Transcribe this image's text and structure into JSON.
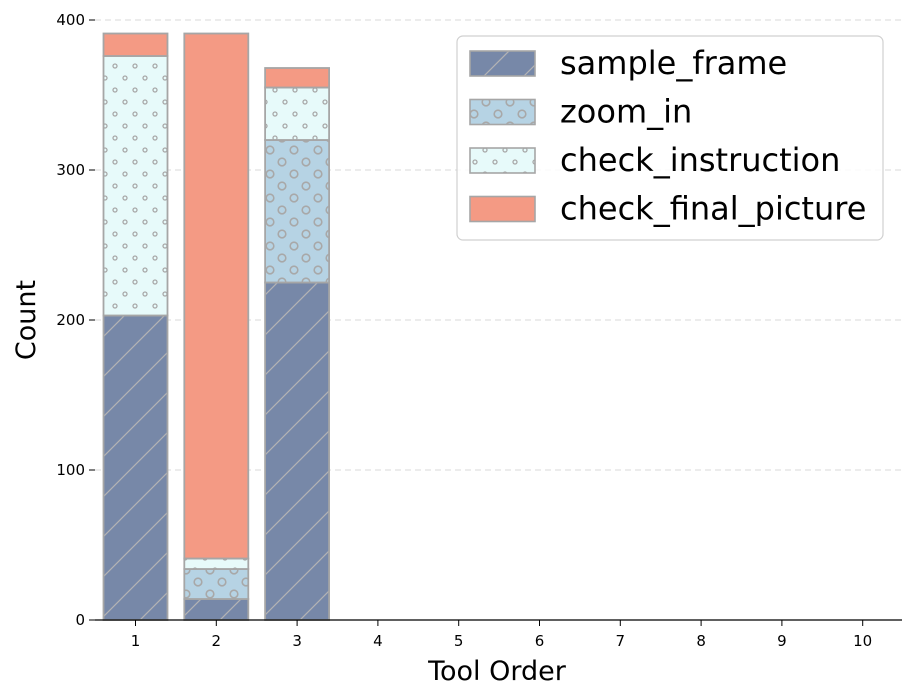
{
  "chart_data": {
    "type": "bar",
    "stacked": true,
    "xlabel": "Tool Order",
    "ylabel": "Count",
    "categories": [
      "1",
      "2",
      "3",
      "4",
      "5",
      "6",
      "7",
      "8",
      "9",
      "10"
    ],
    "ylim": [
      0,
      400
    ],
    "yticks": [
      0,
      100,
      200,
      300,
      400
    ],
    "grid": "horizontal dashed",
    "legend_position": "top-right",
    "series": [
      {
        "name": "sample_frame",
        "color": "#7788a8",
        "hatch": "diagonal",
        "values": [
          203,
          14,
          225,
          0,
          0,
          0,
          0,
          0,
          0,
          0
        ]
      },
      {
        "name": "zoom_in",
        "color": "#b6d3e4",
        "hatch": "large-circles",
        "values": [
          0,
          20,
          95,
          0,
          0,
          0,
          0,
          0,
          0,
          0
        ]
      },
      {
        "name": "check_instruction",
        "color": "#e7fafa",
        "hatch": "small-dots",
        "values": [
          173,
          7,
          35,
          0,
          0,
          0,
          0,
          0,
          0,
          0
        ]
      },
      {
        "name": "check_final_picture",
        "color": "#f49a84",
        "hatch": "none",
        "values": [
          15,
          350,
          13,
          0,
          0,
          0,
          0,
          0,
          0,
          0
        ]
      }
    ]
  }
}
